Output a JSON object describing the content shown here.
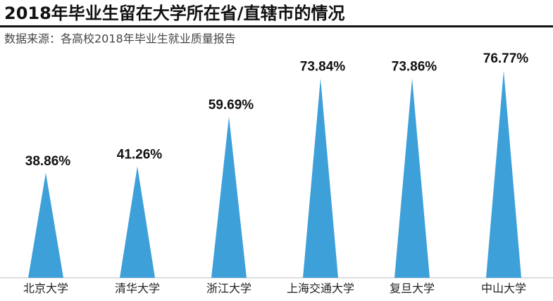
{
  "chart_data": {
    "type": "bar",
    "title": "2018年毕业生留在大学所在省/直辖市的情况",
    "subtitle": "数据来源：各高校2018年毕业生就业质量报告",
    "categories": [
      "北京大学",
      "清华大学",
      "浙江大学",
      "上海交通大学",
      "复旦大学",
      "中山大学"
    ],
    "values": [
      38.86,
      41.26,
      59.69,
      73.84,
      73.86,
      76.77
    ],
    "value_labels": [
      "38.86%",
      "41.26%",
      "59.69%",
      "73.84%",
      "73.86%",
      "76.77%"
    ],
    "color": "#3ea0d9"
  }
}
